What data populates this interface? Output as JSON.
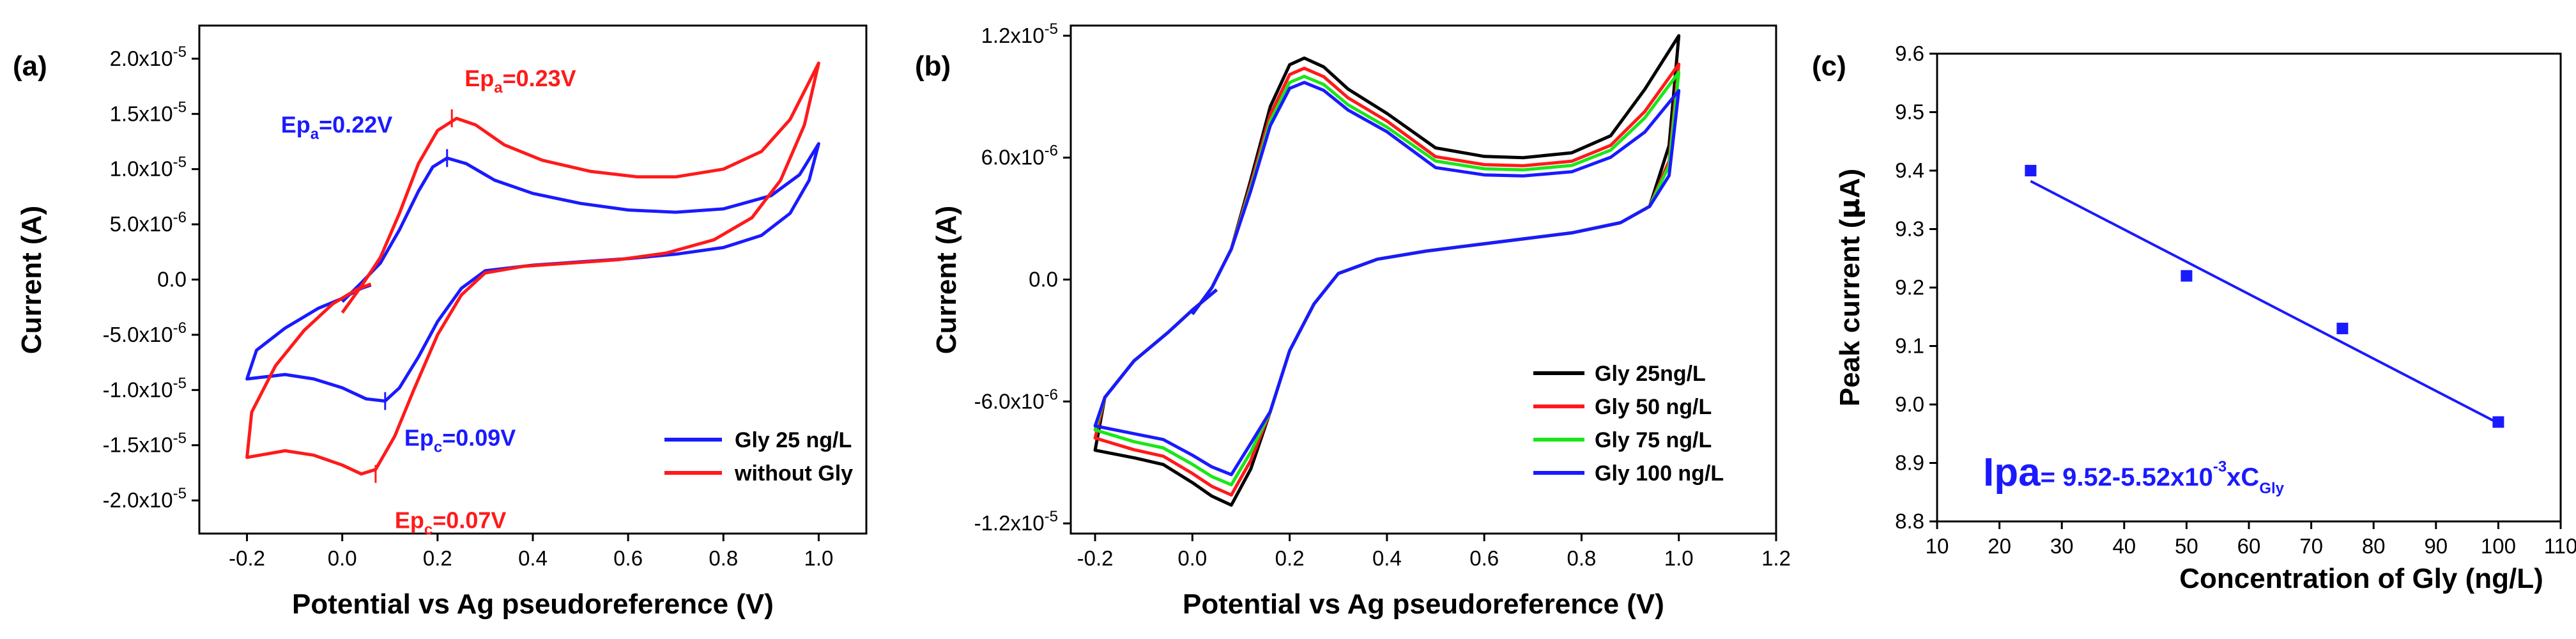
{
  "chart_data": [
    {
      "type": "line",
      "panel_label": "(a)",
      "xlabel": "Potential vs Ag pseudoreference (V)",
      "ylabel": "Current (A)",
      "xlim": [
        -0.3,
        1.1
      ],
      "ylim": [
        -2.3e-05,
        2.3e-05
      ],
      "x_ticks": [
        -0.2,
        0.0,
        0.2,
        0.4,
        0.6,
        0.8,
        1.0
      ],
      "x_tick_labels": [
        "-0.2",
        "0.0",
        "0.2",
        "0.4",
        "0.6",
        "0.8",
        "1.0"
      ],
      "y_ticks": [
        {
          "value": 2e-05,
          "mantissa": "2.0x10",
          "exp": "-5"
        },
        {
          "value": 1.5e-05,
          "mantissa": "1.5x10",
          "exp": "-5"
        },
        {
          "value": 1e-05,
          "mantissa": "1.0x10",
          "exp": "-5"
        },
        {
          "value": 5e-06,
          "mantissa": "5.0x10",
          "exp": "-6"
        },
        {
          "value": 0.0,
          "mantissa": "0.0",
          "exp": ""
        },
        {
          "value": -5e-06,
          "mantissa": "-5.0x10",
          "exp": "-6"
        },
        {
          "value": -1e-05,
          "mantissa": "-1.0x10",
          "exp": "-5"
        },
        {
          "value": -1.5e-05,
          "mantissa": "-1.5x10",
          "exp": "-5"
        },
        {
          "value": -2e-05,
          "mantissa": "-2.0x10",
          "exp": "-5"
        }
      ],
      "series": [
        {
          "name": "Gly 25 ng/L",
          "color": "#1a1aff",
          "points": [
            [
              0.0,
              -2e-06
            ],
            [
              0.04,
              -3e-07
            ],
            [
              0.08,
              1.5e-06
            ],
            [
              0.12,
              4.5e-06
            ],
            [
              0.16,
              8e-06
            ],
            [
              0.19,
              1.02e-05
            ],
            [
              0.22,
              1.1e-05
            ],
            [
              0.26,
              1.05e-05
            ],
            [
              0.32,
              9e-06
            ],
            [
              0.4,
              7.8e-06
            ],
            [
              0.5,
              6.9e-06
            ],
            [
              0.6,
              6.3e-06
            ],
            [
              0.7,
              6.1e-06
            ],
            [
              0.8,
              6.4e-06
            ],
            [
              0.9,
              7.6e-06
            ],
            [
              0.96,
              9.5e-06
            ],
            [
              1.0,
              1.23e-05
            ],
            [
              0.98,
              9e-06
            ],
            [
              0.94,
              6e-06
            ],
            [
              0.88,
              4e-06
            ],
            [
              0.8,
              2.9e-06
            ],
            [
              0.7,
              2.3e-06
            ],
            [
              0.6,
              1.9e-06
            ],
            [
              0.5,
              1.6e-06
            ],
            [
              0.4,
              1.3e-06
            ],
            [
              0.3,
              8e-07
            ],
            [
              0.25,
              -8e-07
            ],
            [
              0.2,
              -3.8e-06
            ],
            [
              0.16,
              -7e-06
            ],
            [
              0.12,
              -9.8e-06
            ],
            [
              0.09,
              -1.1e-05
            ],
            [
              0.05,
              -1.08e-05
            ],
            [
              0.0,
              -9.8e-06
            ],
            [
              -0.06,
              -9e-06
            ],
            [
              -0.12,
              -8.6e-06
            ],
            [
              -0.2,
              -9e-06
            ],
            [
              -0.18,
              -6.4e-06
            ],
            [
              -0.12,
              -4.4e-06
            ],
            [
              -0.05,
              -2.6e-06
            ],
            [
              0.0,
              -1.7e-06
            ],
            [
              0.04,
              -8e-07
            ],
            [
              0.06,
              -5e-07
            ]
          ]
        },
        {
          "name": "without Gly",
          "color": "#ff1a1a",
          "points": [
            [
              0.0,
              -3e-06
            ],
            [
              0.04,
              -6e-07
            ],
            [
              0.08,
              2e-06
            ],
            [
              0.12,
              6e-06
            ],
            [
              0.16,
              1.05e-05
            ],
            [
              0.2,
              1.35e-05
            ],
            [
              0.24,
              1.46e-05
            ],
            [
              0.28,
              1.4e-05
            ],
            [
              0.34,
              1.22e-05
            ],
            [
              0.42,
              1.08e-05
            ],
            [
              0.52,
              9.8e-06
            ],
            [
              0.62,
              9.3e-06
            ],
            [
              0.7,
              9.3e-06
            ],
            [
              0.8,
              1e-05
            ],
            [
              0.88,
              1.16e-05
            ],
            [
              0.94,
              1.45e-05
            ],
            [
              1.0,
              1.96e-05
            ],
            [
              0.97,
              1.4e-05
            ],
            [
              0.92,
              9e-06
            ],
            [
              0.86,
              5.6e-06
            ],
            [
              0.78,
              3.6e-06
            ],
            [
              0.68,
              2.4e-06
            ],
            [
              0.58,
              1.8e-06
            ],
            [
              0.48,
              1.5e-06
            ],
            [
              0.38,
              1.2e-06
            ],
            [
              0.3,
              6e-07
            ],
            [
              0.25,
              -1.4e-06
            ],
            [
              0.2,
              -5e-06
            ],
            [
              0.15,
              -1e-05
            ],
            [
              0.11,
              -1.42e-05
            ],
            [
              0.07,
              -1.72e-05
            ],
            [
              0.04,
              -1.76e-05
            ],
            [
              0.0,
              -1.68e-05
            ],
            [
              -0.06,
              -1.59e-05
            ],
            [
              -0.12,
              -1.55e-05
            ],
            [
              -0.2,
              -1.61e-05
            ],
            [
              -0.19,
              -1.2e-05
            ],
            [
              -0.14,
              -7.8e-06
            ],
            [
              -0.08,
              -4.6e-06
            ],
            [
              -0.02,
              -2.2e-06
            ],
            [
              0.03,
              -9e-07
            ],
            [
              0.06,
              -4e-07
            ]
          ]
        }
      ],
      "annotations": [
        {
          "base": "Ep",
          "sub": "a",
          "rest": "=0.23V",
          "color": "#ff1a1a",
          "x": 0.23,
          "y": 1.46e-05
        },
        {
          "base": "Ep",
          "sub": "a",
          "rest": "=0.22V",
          "color": "#1a1aff",
          "x": 0.22,
          "y": 1.1e-05
        },
        {
          "base": "Ep",
          "sub": "c",
          "rest": "=0.09V",
          "color": "#1a1aff",
          "x": 0.09,
          "y": -1.1e-05
        },
        {
          "base": "Ep",
          "sub": "c",
          "rest": "=0.07V",
          "color": "#ff1a1a",
          "x": 0.07,
          "y": -1.76e-05
        }
      ],
      "legend_position": "bottom-right"
    },
    {
      "type": "line",
      "panel_label": "(b)",
      "xlabel": "Potential vs Ag pseudoreference (V)",
      "ylabel": "Current (A)",
      "xlim": [
        -0.25,
        1.2
      ],
      "ylim": [
        -1.25e-05,
        1.25e-05
      ],
      "x_ticks": [
        -0.2,
        0.0,
        0.2,
        0.4,
        0.6,
        0.8,
        1.0,
        1.2
      ],
      "x_tick_labels": [
        "-0.2",
        "0.0",
        "0.2",
        "0.4",
        "0.6",
        "0.8",
        "1.0",
        "1.2"
      ],
      "y_ticks": [
        {
          "value": 1.2e-05,
          "mantissa": "1.2x10",
          "exp": "-5"
        },
        {
          "value": 6e-06,
          "mantissa": "6.0x10",
          "exp": "-6"
        },
        {
          "value": 0.0,
          "mantissa": "0.0",
          "exp": ""
        },
        {
          "value": -6e-06,
          "mantissa": "-6.0x10",
          "exp": "-6"
        },
        {
          "value": -1.2e-05,
          "mantissa": "-1.2x10",
          "exp": "-5"
        }
      ],
      "series": [
        {
          "name": "Gly 25ng/L",
          "color": "#000000",
          "anodic_peak": 1.09e-05,
          "cathodic_peak": -1.11e-05,
          "plateau": 6e-06,
          "end_high": 1.2e-05,
          "start_low": -8.4e-06
        },
        {
          "name": "Gly 50 ng/L",
          "color": "#ff1a1a",
          "anodic_peak": 1.04e-05,
          "cathodic_peak": -1.06e-05,
          "plateau": 5.6e-06,
          "end_high": 1.06e-05,
          "start_low": -7.8e-06
        },
        {
          "name": "Gly 75 ng/L",
          "color": "#1ae61a",
          "anodic_peak": 1e-05,
          "cathodic_peak": -1.01e-05,
          "plateau": 5.4e-06,
          "end_high": 1.02e-05,
          "start_low": -7.4e-06
        },
        {
          "name": "Gly 100 ng/L",
          "color": "#1a1aff",
          "anodic_peak": 9.7e-06,
          "cathodic_peak": -9.6e-06,
          "plateau": 5.1e-06,
          "end_high": 9.3e-06,
          "start_low": -7.2e-06
        }
      ],
      "legend_position": "bottom-right"
    },
    {
      "type": "scatter",
      "panel_label": "(c)",
      "xlabel": "Concentration of Gly (ng/L)",
      "ylabel_prefix": "Peak current (",
      "ylabel_mu": "μ",
      "ylabel_suffix": "A)",
      "xlim": [
        10,
        110
      ],
      "ylim": [
        8.8,
        9.6
      ],
      "x_ticks": [
        10,
        20,
        30,
        40,
        50,
        60,
        70,
        80,
        90,
        100,
        110
      ],
      "y_ticks": [
        8.8,
        8.9,
        9.0,
        9.1,
        9.2,
        9.3,
        9.4,
        9.5,
        9.6
      ],
      "x": [
        25,
        50,
        75,
        100
      ],
      "y": [
        9.4,
        9.22,
        9.13,
        8.97
      ],
      "color": "#1a1aff",
      "fit": {
        "intercept": 9.52,
        "slope": -0.00552,
        "x_range": [
          25,
          100
        ]
      },
      "equation": {
        "lhs": "Ipa",
        "rhs": "= 9.52-5.52x10",
        "exp": "-3",
        "mid": "xC",
        "sub": "Gly"
      }
    }
  ]
}
